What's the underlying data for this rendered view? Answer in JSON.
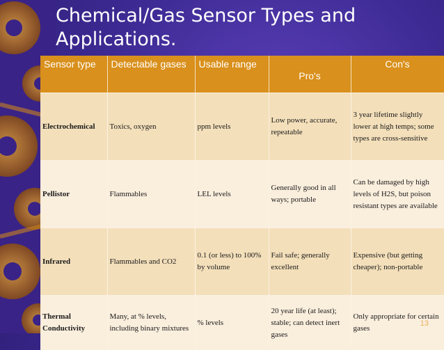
{
  "slide": {
    "title": "Chemical/Gas Sensor Types and Applications.",
    "page_number": "13"
  },
  "table": {
    "headers": [
      "Sensor type",
      "Detectable gases",
      "Usable range",
      "Pro's",
      "Con's"
    ],
    "rows": [
      [
        "Electrochemical",
        "Toxics, oxygen",
        "ppm levels",
        "Low power, accurate, repeatable",
        "3 year lifetime slightly lower at high temps; some types are cross-sensitive"
      ],
      [
        "Pellistor",
        "Flammables",
        "LEL levels",
        "Generally good in all ways; portable",
        "Can be damaged by high levels of H2S, but poison resistant types are available"
      ],
      [
        "Infrared",
        "Flammables and CO2",
        "0.1 (or less) to 100% by volume",
        "Fail safe; generally excellent",
        "Expensive (but getting cheaper); non-portable"
      ],
      [
        "Thermal Conductivity",
        "Many, at % levels, including binary mixtures",
        "% levels",
        "20 year life (at least); stable; can detect inert gases",
        "Only appropriate for certain gases"
      ]
    ]
  },
  "colors": {
    "background": "#3d2a93",
    "header_bg": "#d9901c",
    "row_odd": "#f3dfba",
    "row_even": "#faeedd"
  }
}
